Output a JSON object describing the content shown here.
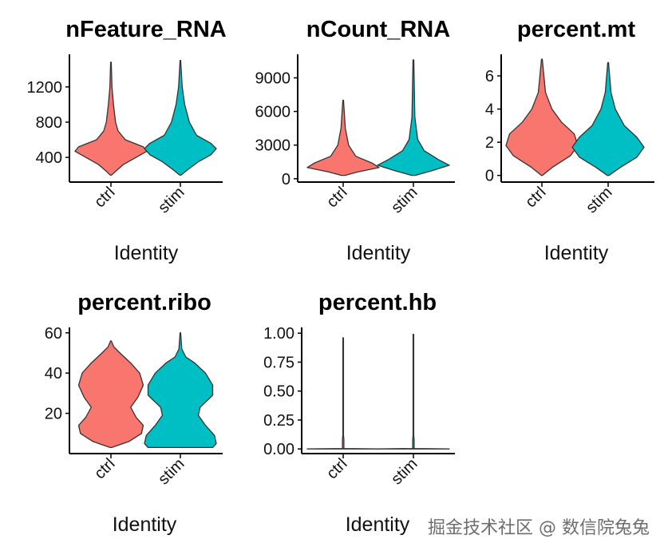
{
  "colors": {
    "ctrl": "#F8766D",
    "stim": "#00BFC4",
    "outline": "#333333"
  },
  "watermark": "掘金技术社区 @ 数信院兔兔",
  "chart_data": [
    {
      "type": "violin",
      "title": "nFeature_RNA",
      "xlabel": "Identity",
      "ylabel": "",
      "categories": [
        "ctrl",
        "stim"
      ],
      "ylim": [
        120,
        1570
      ],
      "yticks": [
        400,
        800,
        1200
      ],
      "ytick_labels": [
        "400",
        "800",
        "1200"
      ],
      "density": {
        "ctrl": [
          [
            200,
            0.02
          ],
          [
            250,
            0.15
          ],
          [
            320,
            0.35
          ],
          [
            400,
            0.7
          ],
          [
            470,
            1.0
          ],
          [
            520,
            0.9
          ],
          [
            600,
            0.4
          ],
          [
            700,
            0.2
          ],
          [
            800,
            0.13
          ],
          [
            1000,
            0.07
          ],
          [
            1200,
            0.03
          ],
          [
            1480,
            0.01
          ]
        ],
        "stim": [
          [
            200,
            0.02
          ],
          [
            260,
            0.2
          ],
          [
            350,
            0.5
          ],
          [
            430,
            0.85
          ],
          [
            500,
            1.0
          ],
          [
            560,
            0.85
          ],
          [
            650,
            0.45
          ],
          [
            800,
            0.25
          ],
          [
            1000,
            0.12
          ],
          [
            1200,
            0.05
          ],
          [
            1500,
            0.01
          ]
        ]
      }
    },
    {
      "type": "violin",
      "title": "nCount_RNA",
      "xlabel": "Identity",
      "ylabel": "",
      "categories": [
        "ctrl",
        "stim"
      ],
      "ylim": [
        -300,
        11100
      ],
      "yticks": [
        0,
        3000,
        6000,
        9000
      ],
      "ytick_labels": [
        "0",
        "3000",
        "6000",
        "9000"
      ],
      "density": {
        "ctrl": [
          [
            300,
            0.05
          ],
          [
            600,
            0.4
          ],
          [
            1000,
            1.0
          ],
          [
            1400,
            0.8
          ],
          [
            2000,
            0.35
          ],
          [
            3000,
            0.15
          ],
          [
            4500,
            0.06
          ],
          [
            7000,
            0.01
          ]
        ],
        "stim": [
          [
            300,
            0.05
          ],
          [
            700,
            0.5
          ],
          [
            1200,
            1.0
          ],
          [
            1700,
            0.7
          ],
          [
            2500,
            0.3
          ],
          [
            3500,
            0.12
          ],
          [
            5500,
            0.04
          ],
          [
            10600,
            0.01
          ]
        ]
      }
    },
    {
      "type": "violin",
      "title": "percent.mt",
      "xlabel": "Identity",
      "ylabel": "",
      "categories": [
        "ctrl",
        "stim"
      ],
      "ylim": [
        -0.4,
        7.3
      ],
      "yticks": [
        0,
        2,
        4,
        6
      ],
      "ytick_labels": [
        "0",
        "2",
        "4",
        "6"
      ],
      "density": {
        "ctrl": [
          [
            0,
            0.01
          ],
          [
            0.5,
            0.3
          ],
          [
            1.2,
            0.8
          ],
          [
            1.8,
            1.0
          ],
          [
            2.5,
            0.9
          ],
          [
            3.2,
            0.55
          ],
          [
            4,
            0.28
          ],
          [
            5,
            0.1
          ],
          [
            7,
            0.01
          ]
        ],
        "stim": [
          [
            0,
            0.02
          ],
          [
            0.5,
            0.35
          ],
          [
            1.1,
            0.8
          ],
          [
            1.7,
            1.0
          ],
          [
            2.3,
            0.8
          ],
          [
            3,
            0.45
          ],
          [
            4,
            0.2
          ],
          [
            5,
            0.08
          ],
          [
            6.8,
            0.01
          ]
        ]
      }
    },
    {
      "type": "violin",
      "title": "percent.ribo",
      "xlabel": "Identity",
      "ylabel": "",
      "categories": [
        "ctrl",
        "stim"
      ],
      "ylim": [
        0,
        62.7
      ],
      "yticks": [
        20,
        40,
        60
      ],
      "ytick_labels": [
        "20",
        "40",
        "60"
      ],
      "density": {
        "ctrl": [
          [
            3,
            0.02
          ],
          [
            6,
            0.5
          ],
          [
            10,
            0.85
          ],
          [
            14,
            0.9
          ],
          [
            18,
            0.7
          ],
          [
            23,
            0.55
          ],
          [
            28,
            0.75
          ],
          [
            34,
            0.9
          ],
          [
            40,
            0.8
          ],
          [
            45,
            0.55
          ],
          [
            50,
            0.25
          ],
          [
            53,
            0.08
          ],
          [
            56,
            0.01
          ]
        ],
        "stim": [
          [
            3,
            0.9
          ],
          [
            5,
            1.0
          ],
          [
            9,
            0.95
          ],
          [
            14,
            0.7
          ],
          [
            19,
            0.5
          ],
          [
            23,
            0.55
          ],
          [
            29,
            0.9
          ],
          [
            34,
            0.9
          ],
          [
            40,
            0.7
          ],
          [
            45,
            0.4
          ],
          [
            48,
            0.15
          ],
          [
            52,
            0.04
          ],
          [
            60,
            0.01
          ]
        ]
      }
    },
    {
      "type": "violin",
      "title": "percent.hb",
      "xlabel": "Identity",
      "ylabel": "",
      "categories": [
        "ctrl",
        "stim"
      ],
      "ylim": [
        -0.04,
        1.05
      ],
      "yticks": [
        0,
        0.25,
        0.5,
        0.75,
        1.0
      ],
      "ytick_labels": [
        "0.00",
        "0.25",
        "0.50",
        "0.75",
        "1.00"
      ],
      "density": {
        "ctrl": [
          [
            0,
            1.0
          ],
          [
            0.004,
            0.02
          ],
          [
            0.08,
            0.02
          ],
          [
            0.12,
            0.008
          ],
          [
            0.96,
            0.008
          ]
        ],
        "stim": [
          [
            0,
            1.0
          ],
          [
            0.004,
            0.02
          ],
          [
            0.08,
            0.02
          ],
          [
            0.12,
            0.008
          ],
          [
            0.99,
            0.008
          ]
        ]
      }
    }
  ]
}
